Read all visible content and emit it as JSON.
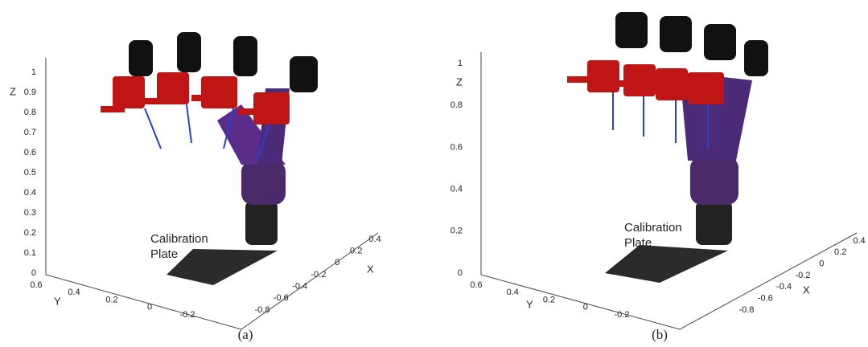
{
  "panels": [
    {
      "caption": "(a)",
      "annotation": [
        "Calibration",
        "Plate"
      ],
      "z_label": "Z",
      "x_label": "X",
      "y_label": "Y",
      "z_ticks": [
        "0",
        "0.1",
        "0.2",
        "0.3",
        "0.4",
        "0.5",
        "0.6",
        "0.7",
        "0.8",
        "0.9",
        "1"
      ],
      "x_ticks": [
        "-0.8",
        "-0.6",
        "-0.4",
        "-0.2",
        "0",
        "0.2",
        "0.4"
      ],
      "y_ticks": [
        "0.6",
        "0.4",
        "0.2",
        "0",
        "-0.2"
      ]
    },
    {
      "caption": "(b)",
      "annotation": [
        "Calibration",
        "Plate"
      ],
      "z_label": "Z",
      "x_label": "X",
      "y_label": "Y",
      "z_ticks": [
        "0",
        "0.2",
        "0.4",
        "0.6",
        "0.8",
        "1"
      ],
      "x_ticks": [
        "-0.8",
        "-0.6",
        "-0.4",
        "-0.2",
        "0",
        "0.2",
        "0.4"
      ],
      "y_ticks": [
        "0.6",
        "0.4",
        "0.2",
        "0",
        "-0.2"
      ]
    }
  ]
}
